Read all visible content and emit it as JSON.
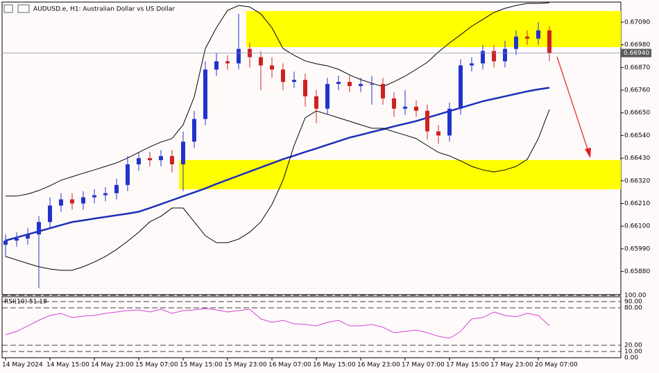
{
  "chart_data": [
    {
      "type": "candlestick",
      "title": "AUDUSD.e, H1: Australian Dollar vs US Dollar",
      "categories": [
        "14 May 2024",
        null,
        null,
        null,
        "14 May 15:00",
        null,
        null,
        null,
        "14 May 23:00",
        null,
        null,
        null,
        "15 May 07:00",
        null,
        null,
        null,
        "15 May 15:00",
        null,
        null,
        null,
        "15 May 23:00",
        null,
        null,
        null,
        "16 May 07:00",
        null,
        null,
        null,
        "16 May 15:00",
        null,
        null,
        null,
        "16 May 23:00",
        null,
        null,
        null,
        "17 May 07:00",
        null,
        null,
        null,
        "17 May 15:00",
        null,
        null,
        null,
        "17 May 23:00",
        null,
        null,
        null,
        "20 May 07:00",
        null
      ],
      "open": [
        0.6601,
        0.6603,
        0.6604,
        0.6606,
        0.6612,
        0.662,
        0.6623,
        0.6621,
        0.6624,
        0.6625,
        0.6626,
        0.663,
        0.664,
        0.6643,
        0.6642,
        0.6644,
        0.664,
        0.6651,
        0.6662,
        0.6686,
        0.669,
        0.6689,
        0.6696,
        0.6692,
        0.6688,
        0.6686,
        0.668,
        0.6681,
        0.6673,
        0.6667,
        0.6679,
        0.668,
        0.6678,
        0.6679,
        0.6679,
        0.6672,
        0.6667,
        0.6668,
        0.6666,
        0.6656,
        0.6654,
        0.6667,
        0.6688,
        0.6689,
        0.6695,
        0.669,
        0.6696,
        0.6702,
        0.6701,
        0.6705
      ],
      "high": [
        0.6606,
        0.6607,
        0.6609,
        0.6615,
        0.6624,
        0.6626,
        0.6626,
        0.6627,
        0.6628,
        0.6629,
        0.6633,
        0.6644,
        0.6646,
        0.6646,
        0.6647,
        0.6647,
        0.6656,
        0.6666,
        0.669,
        0.6694,
        0.6693,
        0.6713,
        0.6699,
        0.6695,
        0.6692,
        0.6689,
        0.6685,
        0.6684,
        0.6676,
        0.6682,
        0.6683,
        0.6683,
        0.6682,
        0.6683,
        0.6682,
        0.6675,
        0.6676,
        0.6671,
        0.6669,
        0.6659,
        0.667,
        0.6691,
        0.6692,
        0.6698,
        0.6698,
        0.67,
        0.6705,
        0.6705,
        0.6709,
        0.6707
      ],
      "low": [
        0.6595,
        0.66,
        0.6601,
        0.658,
        0.6609,
        0.6617,
        0.6618,
        0.6618,
        0.6621,
        0.6622,
        0.6623,
        0.6627,
        0.6637,
        0.6639,
        0.6639,
        0.6636,
        0.6627,
        0.6648,
        0.6659,
        0.6683,
        0.6686,
        0.6686,
        0.6687,
        0.6676,
        0.6682,
        0.6676,
        0.6677,
        0.6668,
        0.666,
        0.6664,
        0.6676,
        0.6675,
        0.6675,
        0.6669,
        0.6669,
        0.6663,
        0.6664,
        0.6663,
        0.6652,
        0.665,
        0.6651,
        0.6664,
        0.6685,
        0.6686,
        0.6687,
        0.6687,
        0.6693,
        0.6698,
        0.6698,
        0.669
      ],
      "close": [
        0.6603,
        0.6604,
        0.6606,
        0.6612,
        0.662,
        0.6623,
        0.6621,
        0.6624,
        0.6625,
        0.6626,
        0.663,
        0.664,
        0.6643,
        0.6642,
        0.6644,
        0.664,
        0.6651,
        0.6662,
        0.6686,
        0.669,
        0.6689,
        0.6696,
        0.6692,
        0.6688,
        0.6686,
        0.668,
        0.6681,
        0.6673,
        0.6667,
        0.6679,
        0.668,
        0.6678,
        0.6679,
        0.6679,
        0.6672,
        0.6667,
        0.6668,
        0.6666,
        0.6656,
        0.6654,
        0.6667,
        0.6688,
        0.6689,
        0.6695,
        0.669,
        0.6696,
        0.6702,
        0.6701,
        0.6705,
        0.6694
      ],
      "up_color": "#2233cc",
      "down_color": "#cc2222",
      "overlays": [
        {
          "color": "#1a2fb8",
          "width": 2.5,
          "values": [
            0.6603,
            0.66045,
            0.6606,
            0.66075,
            0.6609,
            0.66105,
            0.6612,
            0.66128,
            0.66137,
            0.66145,
            0.66153,
            0.66161,
            0.6617,
            0.66188,
            0.66207,
            0.66226,
            0.66245,
            0.66264,
            0.66283,
            0.66305,
            0.66325,
            0.66345,
            0.66365,
            0.66385,
            0.66405,
            0.66425,
            0.66442,
            0.6646,
            0.66477,
            0.66495,
            0.66512,
            0.6653,
            0.66543,
            0.66557,
            0.6657,
            0.66584,
            0.66597,
            0.6661,
            0.66626,
            0.66642,
            0.66658,
            0.66674,
            0.6669,
            0.66706,
            0.66718,
            0.6673,
            0.66742,
            0.66754,
            0.66764,
            0.66772
          ]
        },
        {
          "color": "#000000",
          "width": 1,
          "values": [
            0.66246,
            0.66246,
            0.66256,
            0.66273,
            0.66296,
            0.66323,
            0.6634,
            0.66357,
            0.66373,
            0.6639,
            0.66407,
            0.66431,
            0.66458,
            0.66485,
            0.66508,
            0.66525,
            0.66592,
            0.66727,
            0.66962,
            0.67063,
            0.67147,
            0.67171,
            0.67164,
            0.6713,
            0.67063,
            0.66962,
            0.66929,
            0.66902,
            0.66888,
            0.66878,
            0.66861,
            0.66834,
            0.66811,
            0.66794,
            0.66777,
            0.66801,
            0.66828,
            0.66861,
            0.66895,
            0.66945,
            0.66989,
            0.67029,
            0.6707,
            0.67103,
            0.67137,
            0.67157,
            0.67171,
            0.67181,
            0.67181,
            0.67184
          ]
        },
        {
          "color": "#000000",
          "width": 1,
          "values": [
            0.65953,
            0.65936,
            0.65919,
            0.65903,
            0.65892,
            0.65886,
            0.65886,
            0.65903,
            0.65926,
            0.65953,
            0.65987,
            0.66027,
            0.66071,
            0.66121,
            0.66148,
            0.66188,
            0.66188,
            0.66121,
            0.66054,
            0.6602,
            0.6602,
            0.66037,
            0.66071,
            0.66121,
            0.66205,
            0.66323,
            0.66491,
            0.66626,
            0.66659,
            0.66643,
            0.66626,
            0.66609,
            0.66592,
            0.66575,
            0.66575,
            0.66558,
            0.66542,
            0.66525,
            0.66491,
            0.66458,
            0.66441,
            0.66417,
            0.6639,
            0.66373,
            0.66363,
            0.66373,
            0.6639,
            0.66424,
            0.66525,
            0.66666
          ]
        }
      ],
      "zones": [
        {
          "from": 0.67144,
          "to": 0.66969,
          "color": "#ffff00"
        },
        {
          "from": 0.66421,
          "to": 0.66279,
          "color": "#ffff00"
        }
      ],
      "last_price": {
        "value": 0.6694,
        "label": "0.66940"
      },
      "ylim": [
        0.65771,
        0.67184
      ],
      "yticks": [
        {
          "value": 0.6709,
          "label": "0.67090"
        },
        {
          "value": 0.6698,
          "label": "0.66980"
        },
        {
          "value": 0.6687,
          "label": "0.66870"
        },
        {
          "value": 0.6676,
          "label": "0.66760"
        },
        {
          "value": 0.6665,
          "label": "0.66650"
        },
        {
          "value": 0.6654,
          "label": "0.66540"
        },
        {
          "value": 0.6643,
          "label": "0.66430"
        },
        {
          "value": 0.6632,
          "label": "0.66320"
        },
        {
          "value": 0.6621,
          "label": "0.66210"
        },
        {
          "value": 0.661,
          "label": "0.66100"
        },
        {
          "value": 0.6599,
          "label": "0.65990"
        },
        {
          "value": 0.6588,
          "label": "0.65880"
        }
      ]
    },
    {
      "type": "line",
      "title": "RSI(10) 51.18",
      "color": "#d63fd6",
      "values": [
        36.7,
        42.2,
        51.1,
        60,
        67.8,
        71.1,
        64.4,
        66.7,
        67.8,
        71.1,
        73.3,
        75.6,
        76.7,
        73.3,
        77.8,
        71.1,
        75.6,
        76.7,
        78.9,
        76.7,
        73.3,
        75.6,
        77.8,
        62.2,
        56.7,
        60,
        54.4,
        53.3,
        51.1,
        56.7,
        60,
        51.1,
        51.1,
        53.3,
        48.9,
        40,
        42.2,
        44.4,
        40,
        34.4,
        31.1,
        42.2,
        62.2,
        64.4,
        73.3,
        67.8,
        65.6,
        71.1,
        67.8,
        51.18
      ],
      "ylim": [
        0,
        100
      ],
      "yticks": [
        {
          "value": 100,
          "label": "100.00"
        },
        {
          "value": 90,
          "label": "90.00"
        },
        {
          "value": 80,
          "label": "80.00"
        },
        {
          "value": 20,
          "label": "20.00"
        },
        {
          "value": 10,
          "label": "10.00"
        },
        {
          "value": 0,
          "label": "0.00"
        }
      ]
    }
  ]
}
